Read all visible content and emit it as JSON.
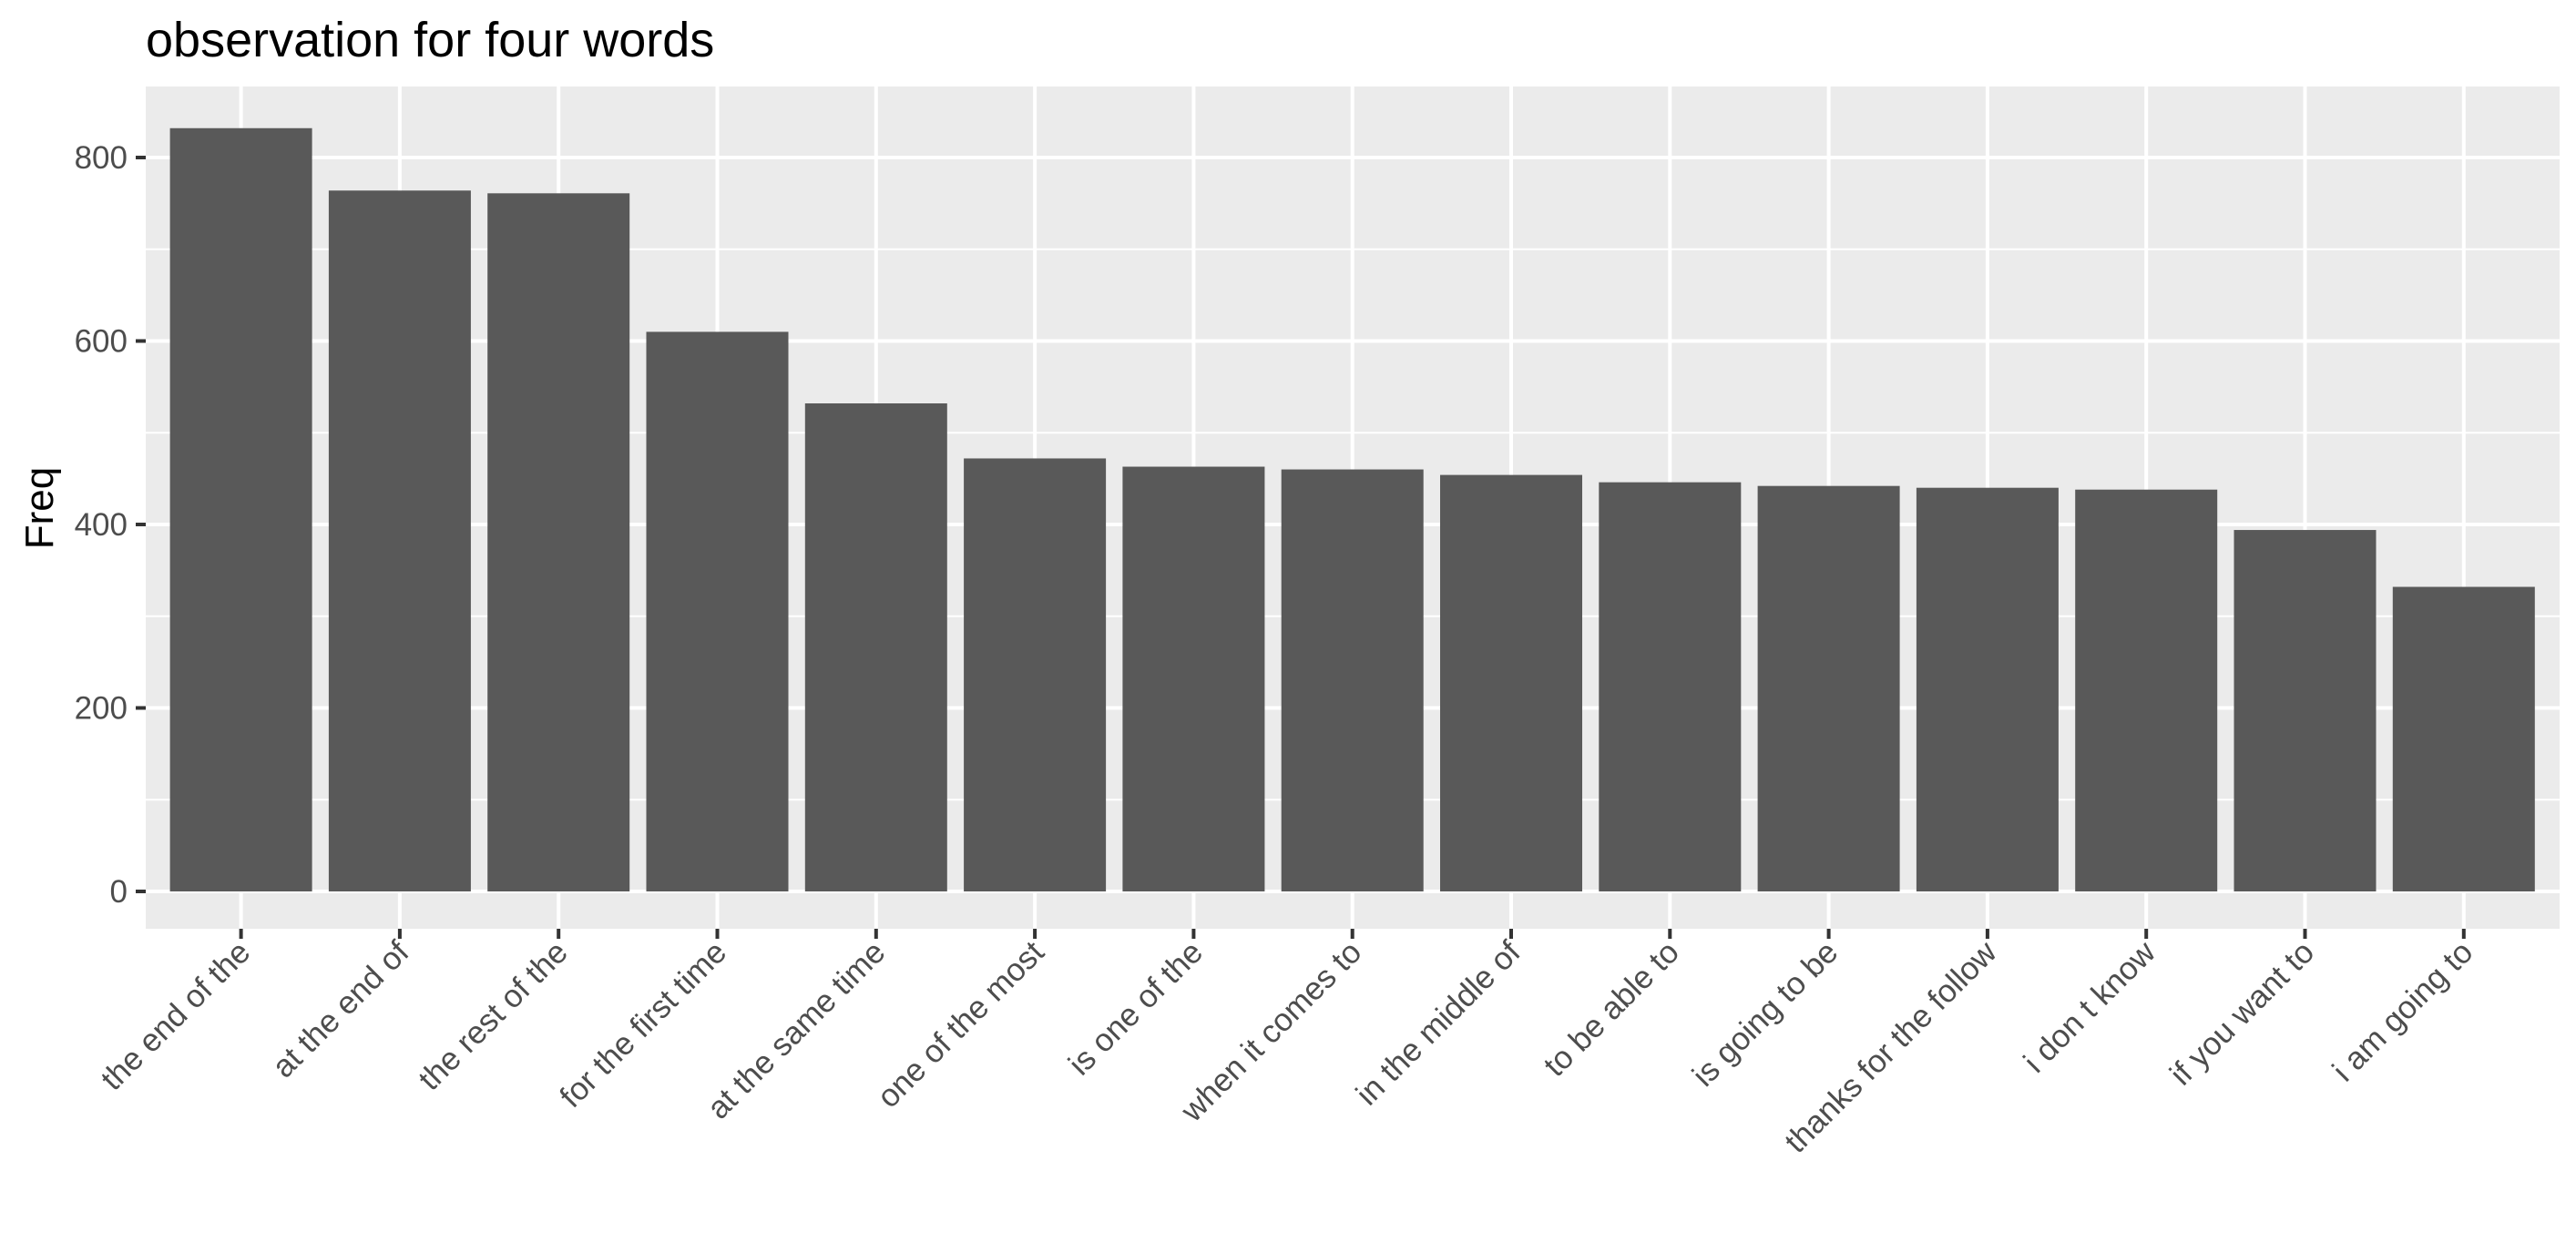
{
  "chart_data": {
    "type": "bar",
    "title": "observation for four words",
    "xlabel": "",
    "ylabel": "Freq",
    "categories": [
      "the end of the",
      "at the end of",
      "the rest of the",
      "for the first time",
      "at the same time",
      "one of the most",
      "is one of the",
      "when it comes to",
      "in the middle of",
      "to be able to",
      "is going to be",
      "thanks for the follow",
      "i don t know",
      "if you want to",
      "i am going to"
    ],
    "values": [
      832,
      764,
      761,
      610,
      532,
      472,
      463,
      460,
      454,
      446,
      442,
      440,
      438,
      394,
      332
    ],
    "yticks": [
      0,
      200,
      400,
      600,
      800
    ],
    "ylim": [
      0,
      880
    ],
    "grid": true,
    "colors": {
      "panel": "#ebebeb",
      "grid_major": "#ffffff",
      "bar": "#595959",
      "tick_text": "#4d4d4d",
      "tick_mark": "#333333"
    }
  }
}
